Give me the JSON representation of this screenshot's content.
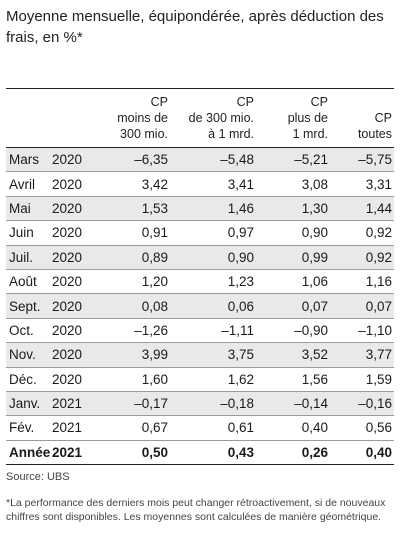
{
  "title": "Moyenne mensuelle, équipondérée, après déduction des frais, en %*",
  "table": {
    "headers": [
      [
        "CP",
        "moins de",
        "300 mio."
      ],
      [
        "CP",
        "de 300 mio.",
        "à 1 mrd."
      ],
      [
        "CP",
        "plus de",
        "1 mrd."
      ],
      [
        "CP",
        "toutes"
      ]
    ],
    "rows": [
      {
        "month": "Mars",
        "year": "2020",
        "values": [
          "–6,35",
          "–5,48",
          "–5,21",
          "–5,75"
        ]
      },
      {
        "month": "Avril",
        "year": "2020",
        "values": [
          "3,42",
          "3,41",
          "3,08",
          "3,31"
        ]
      },
      {
        "month": "Mai",
        "year": "2020",
        "values": [
          "1,53",
          "1,46",
          "1,30",
          "1,44"
        ]
      },
      {
        "month": "Juin",
        "year": "2020",
        "values": [
          "0,91",
          "0,97",
          "0,90",
          "0,92"
        ]
      },
      {
        "month": "Juil.",
        "year": "2020",
        "values": [
          "0,89",
          "0,90",
          "0,99",
          "0,92"
        ]
      },
      {
        "month": "Août",
        "year": "2020",
        "values": [
          "1,20",
          "1,23",
          "1,06",
          "1,16"
        ]
      },
      {
        "month": "Sept.",
        "year": "2020",
        "values": [
          "0,08",
          "0,06",
          "0,07",
          "0,07"
        ]
      },
      {
        "month": "Oct.",
        "year": "2020",
        "values": [
          "–1,26",
          "–1,11",
          "–0,90",
          "–1,10"
        ]
      },
      {
        "month": "Nov.",
        "year": "2020",
        "values": [
          "3,99",
          "3,75",
          "3,52",
          "3,77"
        ]
      },
      {
        "month": "Déc.",
        "year": "2020",
        "values": [
          "1,60",
          "1,62",
          "1,56",
          "1,59"
        ]
      },
      {
        "month": "Janv.",
        "year": "2021",
        "values": [
          "–0,17",
          "–0,18",
          "–0,14",
          "–0,16"
        ]
      },
      {
        "month": "Fév.",
        "year": "2021",
        "values": [
          "0,67",
          "0,61",
          "0,40",
          "0,56"
        ]
      }
    ],
    "total": {
      "label": "Année",
      "year": "2021",
      "values": [
        "0,50",
        "0,43",
        "0,26",
        "0,40"
      ]
    }
  },
  "source": "Source: UBS",
  "footnote": "*La performance des derniers mois peut changer rétroactivement, si de nouveaux chiffres sont disponibles. Les moyennes sont calculées de manière géométrique."
}
